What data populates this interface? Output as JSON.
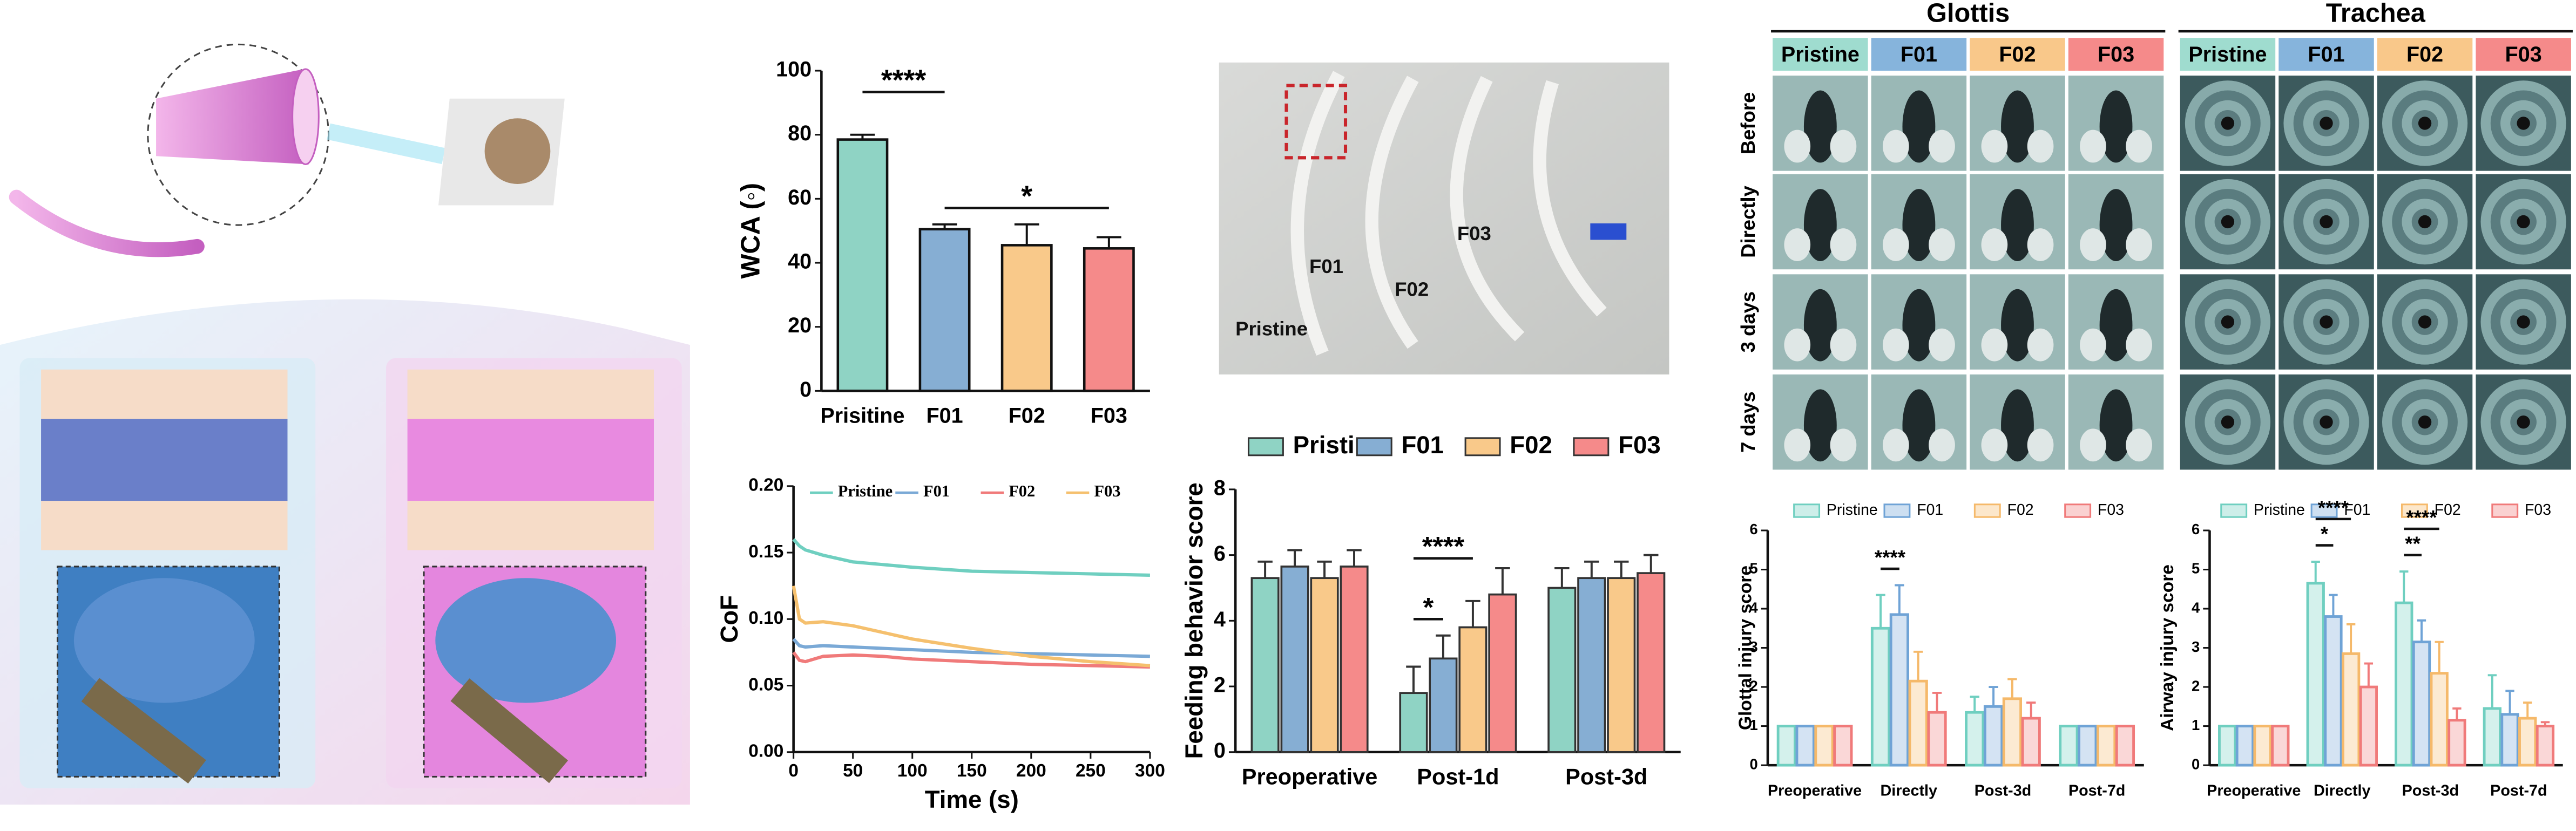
{
  "chart_data": [
    {
      "type": "bar",
      "ylabel": "WCA (◦)",
      "categories": [
        "Prisitine",
        "F01",
        "F02",
        "F03"
      ],
      "values": [
        78.5,
        50.5,
        45.5,
        44.5
      ],
      "errors": [
        1.5,
        1.5,
        6.5,
        3.5
      ],
      "colors": [
        "#8fd3c4",
        "#86aed3",
        "#f9c98a",
        "#f58a8a"
      ],
      "ylim": [
        0,
        100
      ],
      "yticks": [
        0,
        20,
        40,
        60,
        80,
        100
      ],
      "annotations": [
        {
          "text": "****",
          "span": [
            0,
            1
          ]
        },
        {
          "text": "*",
          "span": [
            1,
            3
          ]
        }
      ]
    },
    {
      "type": "line",
      "xlabel": "Time (s)",
      "ylabel": "CoF",
      "x": [
        0,
        5,
        10,
        25,
        50,
        75,
        100,
        150,
        200,
        250,
        300
      ],
      "series": [
        {
          "name": "Pristine",
          "color": "#6fcfc0",
          "values": [
            0.16,
            0.155,
            0.152,
            0.148,
            0.143,
            0.141,
            0.139,
            0.136,
            0.135,
            0.134,
            0.133
          ]
        },
        {
          "name": "F01",
          "color": "#7aa9d6",
          "values": [
            0.085,
            0.08,
            0.079,
            0.08,
            0.079,
            0.078,
            0.077,
            0.075,
            0.074,
            0.073,
            0.072
          ]
        },
        {
          "name": "F02",
          "color": "#f07a7a",
          "values": [
            0.075,
            0.069,
            0.068,
            0.072,
            0.073,
            0.072,
            0.07,
            0.068,
            0.066,
            0.065,
            0.064
          ]
        },
        {
          "name": "F03",
          "color": "#f5c06e",
          "values": [
            0.125,
            0.1,
            0.097,
            0.098,
            0.095,
            0.09,
            0.085,
            0.078,
            0.072,
            0.068,
            0.065
          ]
        }
      ],
      "xlim": [
        0,
        300
      ],
      "xticks": [
        0,
        50,
        100,
        150,
        200,
        250,
        300
      ],
      "ylim": [
        0,
        0.2
      ],
      "yticks": [
        {
          "value": 0,
          "label": "0.00"
        },
        {
          "value": 0.05,
          "label": "0.05"
        },
        {
          "value": 0.1,
          "label": "0.10"
        },
        {
          "value": 0.15,
          "label": "0.15"
        },
        {
          "value": 0.2,
          "label": "0.20"
        }
      ]
    },
    {
      "type": "grouped-bar",
      "ylabel": "Feeding behavior score",
      "categories": [
        "Preoperative",
        "Post-1d",
        "Post-3d"
      ],
      "series": [
        {
          "name": "Pristine",
          "color": "#8fd3c4",
          "values": [
            5.3,
            1.8,
            5.0
          ],
          "errors": [
            0.5,
            0.8,
            0.6
          ]
        },
        {
          "name": "F01",
          "color": "#86aed3",
          "values": [
            5.65,
            2.85,
            5.3
          ],
          "errors": [
            0.5,
            0.7,
            0.5
          ]
        },
        {
          "name": "F02",
          "color": "#f9c98a",
          "values": [
            5.3,
            3.8,
            5.3
          ],
          "errors": [
            0.5,
            0.8,
            0.5
          ]
        },
        {
          "name": "F03",
          "color": "#f58a8a",
          "values": [
            5.65,
            4.8,
            5.45
          ],
          "errors": [
            0.5,
            0.8,
            0.55
          ]
        }
      ],
      "ylim": [
        0,
        8
      ],
      "yticks": [
        0,
        2,
        4,
        6,
        8
      ],
      "annotations": [
        {
          "text": "****",
          "category": 1,
          "span": [
            0,
            2
          ]
        },
        {
          "text": "*",
          "category": 1,
          "span": [
            0,
            1
          ]
        }
      ]
    },
    {
      "type": "grouped-bar",
      "ylabel": "Glottal injury score",
      "categories": [
        "Preoperative",
        "Directly",
        "Post-3d",
        "Post-7d"
      ],
      "series": [
        {
          "name": "Pristine",
          "color": "#6fcfc0",
          "values": [
            1,
            3.5,
            1.35,
            1
          ],
          "errors": [
            0,
            0.85,
            0.4,
            0
          ]
        },
        {
          "name": "F01",
          "color": "#6fa3d6",
          "values": [
            1,
            3.85,
            1.5,
            1
          ],
          "errors": [
            0,
            0.75,
            0.5,
            0
          ]
        },
        {
          "name": "F02",
          "color": "#f5b96a",
          "values": [
            1,
            2.15,
            1.7,
            1
          ],
          "errors": [
            0,
            0.75,
            0.5,
            0
          ]
        },
        {
          "name": "F03",
          "color": "#f07a7a",
          "values": [
            1,
            1.35,
            1.2,
            1
          ],
          "errors": [
            0,
            0.5,
            0.4,
            0
          ]
        }
      ],
      "ylim": [
        0,
        6
      ],
      "yticks": [
        0,
        1,
        2,
        3,
        4,
        5,
        6
      ],
      "annotations": [
        {
          "text": "****",
          "category": 1,
          "span": [
            0,
            1
          ]
        }
      ]
    },
    {
      "type": "grouped-bar",
      "ylabel": "Airway injury score",
      "categories": [
        "Preoperative",
        "Directly",
        "Post-3d",
        "Post-7d"
      ],
      "series": [
        {
          "name": "Pristine",
          "color": "#6fcfc0",
          "values": [
            1,
            4.65,
            4.15,
            1.45
          ],
          "errors": [
            0,
            0.55,
            0.8,
            0.85
          ]
        },
        {
          "name": "F01",
          "color": "#6fa3d6",
          "values": [
            1,
            3.8,
            3.15,
            1.3
          ],
          "errors": [
            0,
            0.55,
            0.55,
            0.6
          ]
        },
        {
          "name": "F02",
          "color": "#f5b96a",
          "values": [
            1,
            2.85,
            2.35,
            1.2
          ],
          "errors": [
            0,
            0.75,
            0.8,
            0.4
          ]
        },
        {
          "name": "F03",
          "color": "#f07a7a",
          "values": [
            1,
            2.0,
            1.15,
            1.0
          ],
          "errors": [
            0,
            0.6,
            0.3,
            0.1
          ]
        }
      ],
      "ylim": [
        0,
        6
      ],
      "yticks": [
        0,
        1,
        2,
        3,
        4,
        5,
        6
      ],
      "annotations": [
        {
          "text": "****",
          "category": 1,
          "span": [
            0,
            2
          ]
        },
        {
          "text": "*",
          "category": 1,
          "span": [
            0,
            1
          ]
        },
        {
          "text": "****",
          "category": 2,
          "span": [
            0,
            2
          ]
        },
        {
          "text": "**",
          "category": 2,
          "span": [
            0,
            1
          ]
        }
      ]
    }
  ],
  "tube_photo": {
    "labels": [
      "Pristine",
      "F01",
      "F02",
      "F03"
    ]
  },
  "endoscopy": {
    "sections": [
      {
        "title": "Glottis",
        "columns": [
          "Pristine",
          "F01",
          "F02",
          "F03"
        ]
      },
      {
        "title": "Trachea",
        "columns": [
          "Pristine",
          "F01",
          "F02",
          "F03"
        ]
      }
    ],
    "rows": [
      "Before",
      "Directly",
      "3 days",
      "7 days"
    ]
  }
}
